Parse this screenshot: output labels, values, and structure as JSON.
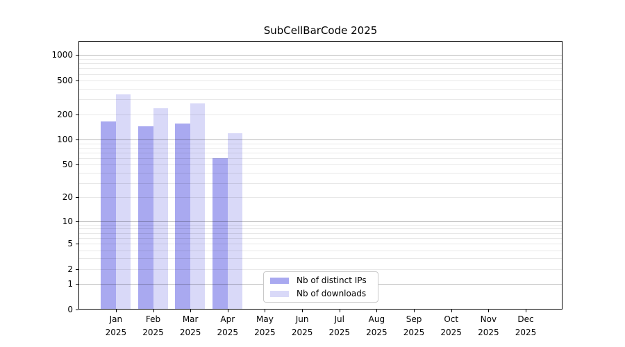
{
  "chart_data": {
    "type": "bar",
    "title": "SubCellBarCode 2025",
    "year_label": "2025",
    "months": [
      "Jan",
      "Feb",
      "Mar",
      "Apr",
      "May",
      "Jun",
      "Jul",
      "Aug",
      "Sep",
      "Oct",
      "Nov",
      "Dec"
    ],
    "categories": [
      "Jan 2025",
      "Feb 2025",
      "Mar 2025",
      "Apr 2025",
      "May 2025",
      "Jun 2025",
      "Jul 2025",
      "Aug 2025",
      "Sep 2025",
      "Oct 2025",
      "Nov 2025",
      "Dec 2025"
    ],
    "series": [
      {
        "name": "Nb of distinct IPs",
        "color": "#a9a9f0",
        "values": [
          164,
          143,
          154,
          60,
          0,
          0,
          0,
          0,
          0,
          0,
          0,
          0
        ]
      },
      {
        "name": "Nb of downloads",
        "color": "#d9d9f8",
        "values": [
          344,
          234,
          268,
          120,
          0,
          0,
          0,
          0,
          0,
          0,
          0,
          0
        ]
      }
    ],
    "y_ticks": [
      0,
      1,
      2,
      5,
      10,
      20,
      50,
      100,
      200,
      500,
      1000
    ],
    "yscale": "log(1+y)",
    "ylim": [
      0,
      1470
    ],
    "xlabel": "",
    "ylabel": "",
    "grid": "horizontal major+minor",
    "legend_position": "lower center"
  },
  "colors": {
    "major_grid": "#b5b5b5",
    "minor_grid": "#e8e8e8",
    "axis": "#000000",
    "background": "#ffffff",
    "legend_border": "#c9c9c9"
  }
}
